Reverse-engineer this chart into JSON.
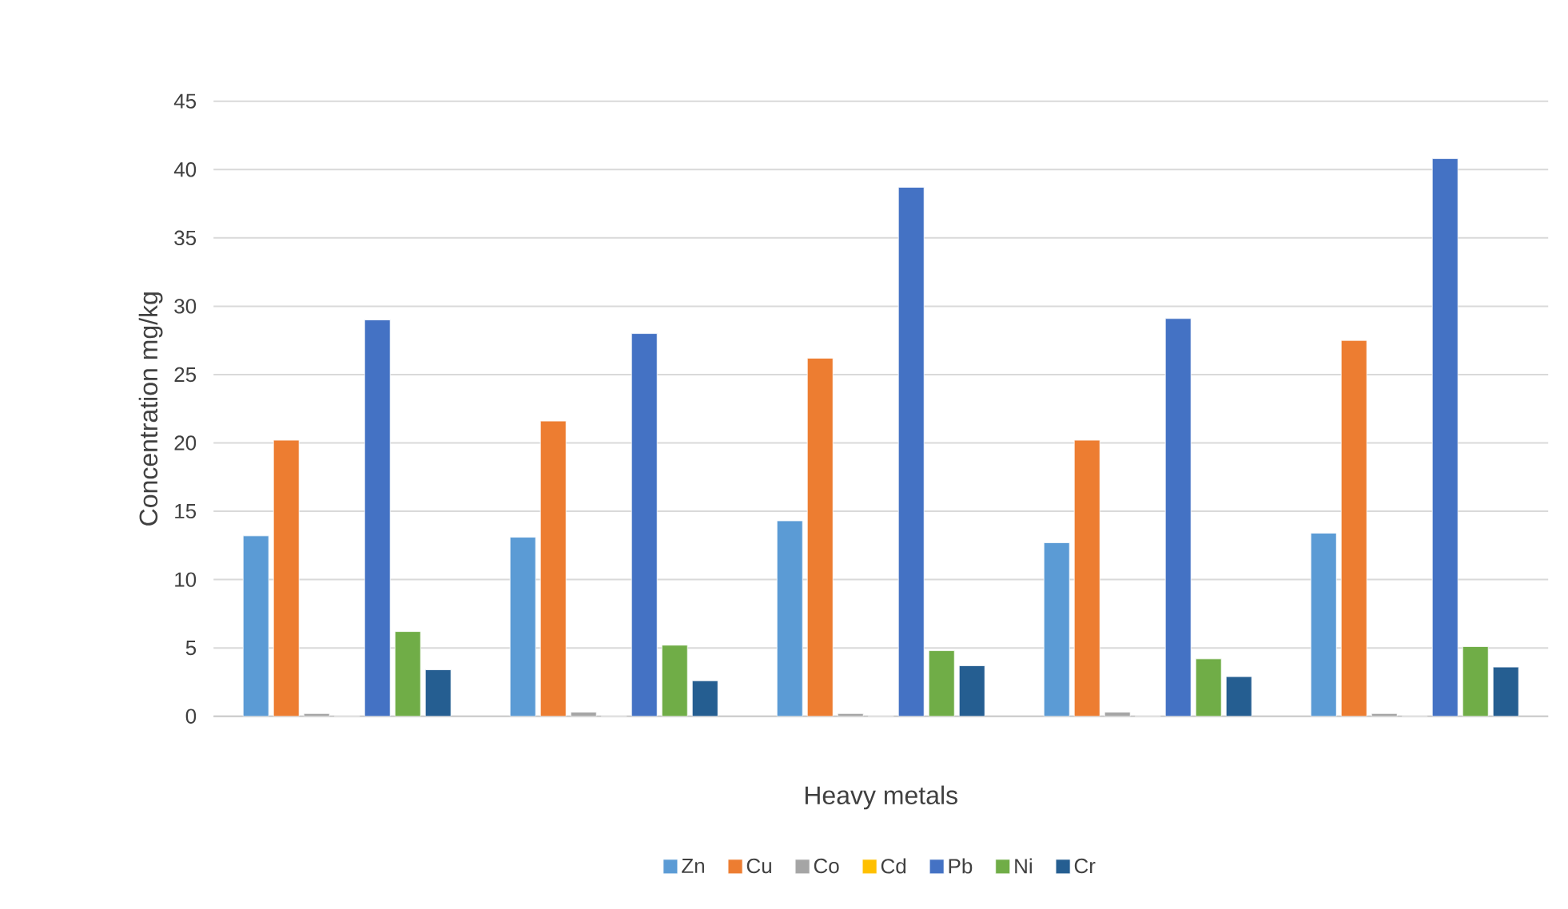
{
  "chart_data": {
    "type": "bar",
    "xlabel": "Heavy metals",
    "ylabel": "Concentration mg/kg",
    "categories": [
      null,
      null,
      null,
      null,
      null
    ],
    "series": [
      {
        "name": "Zn",
        "color": "#5b9bd5",
        "values": [
          13.2,
          13.1,
          14.3,
          12.7,
          13.4
        ]
      },
      {
        "name": "Cu",
        "color": "#ed7d31",
        "values": [
          20.2,
          21.6,
          26.2,
          20.2,
          27.5
        ]
      },
      {
        "name": "Co",
        "color": "#a5a5a5",
        "values": [
          0.2,
          0.3,
          0.2,
          0.3,
          0.2
        ]
      },
      {
        "name": "Cd",
        "color": "#ffc000",
        "values": [
          0,
          0,
          0,
          0,
          0
        ]
      },
      {
        "name": "Pb",
        "color": "#4472c4",
        "values": [
          29.0,
          28.0,
          38.7,
          29.1,
          40.8
        ]
      },
      {
        "name": "Ni",
        "color": "#70ad47",
        "values": [
          6.2,
          5.2,
          4.8,
          4.2,
          5.1
        ]
      },
      {
        "name": "Cr",
        "color": "#255e91",
        "values": [
          3.4,
          2.6,
          3.7,
          2.9,
          3.6
        ]
      }
    ],
    "ylim": [
      0,
      45
    ],
    "yticks": [
      0,
      5,
      10,
      15,
      20,
      25,
      30,
      35,
      40,
      45
    ],
    "grid": "y",
    "legend": "bottom"
  }
}
